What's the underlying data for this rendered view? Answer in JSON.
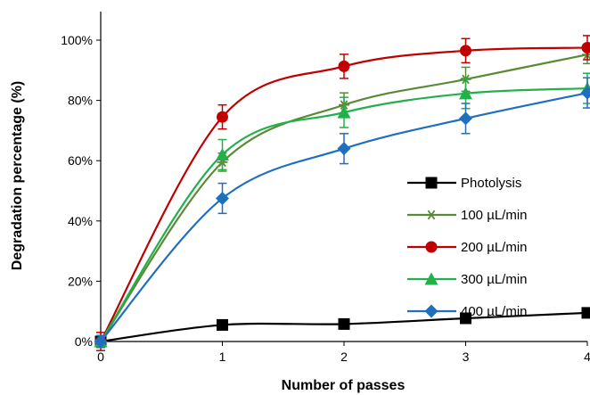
{
  "chart_data": {
    "type": "line",
    "xlabel": "Number of passes",
    "ylabel": "Degradation percentage (%)",
    "x": [
      0,
      1,
      2,
      3,
      4
    ],
    "x_ticks": [
      "0",
      "1",
      "2",
      "3",
      "4"
    ],
    "xlim": [
      0,
      4
    ],
    "ylim": [
      0,
      1.0
    ],
    "y_ticks": [
      "0%",
      "20%",
      "40%",
      "60%",
      "80%",
      "100%"
    ],
    "y_tick_values": [
      0,
      0.2,
      0.4,
      0.6,
      0.8,
      1.0
    ],
    "grid": false,
    "legend_position": "right",
    "series": [
      {
        "name": "Photolysis",
        "color": "#000000",
        "marker": "square",
        "values": [
          0.0,
          0.055,
          0.058,
          0.077,
          0.095
        ],
        "errors": [
          0,
          0,
          0,
          0,
          0
        ]
      },
      {
        "name": "100 µL/min",
        "color": "#5b8a36",
        "marker": "asterisk",
        "values": [
          0.0,
          0.595,
          0.785,
          0.87,
          0.952
        ],
        "errors": [
          0.02,
          0.03,
          0.04,
          0.04,
          0.03
        ]
      },
      {
        "name": "200 µL/min",
        "color": "#c00000",
        "marker": "circle",
        "values": [
          0.0,
          0.745,
          0.913,
          0.965,
          0.975
        ],
        "errors": [
          0.03,
          0.04,
          0.04,
          0.04,
          0.04
        ]
      },
      {
        "name": "300 µL/min",
        "color": "#22b04a",
        "marker": "triangle",
        "values": [
          0.0,
          0.62,
          0.76,
          0.823,
          0.84
        ],
        "errors": [
          0.02,
          0.05,
          0.05,
          0.05,
          0.05
        ]
      },
      {
        "name": "400 µL/min",
        "color": "#1f6fbf",
        "marker": "diamond",
        "values": [
          0.0,
          0.475,
          0.64,
          0.74,
          0.825
        ],
        "errors": [
          0.02,
          0.05,
          0.05,
          0.05,
          0.05
        ]
      }
    ]
  }
}
